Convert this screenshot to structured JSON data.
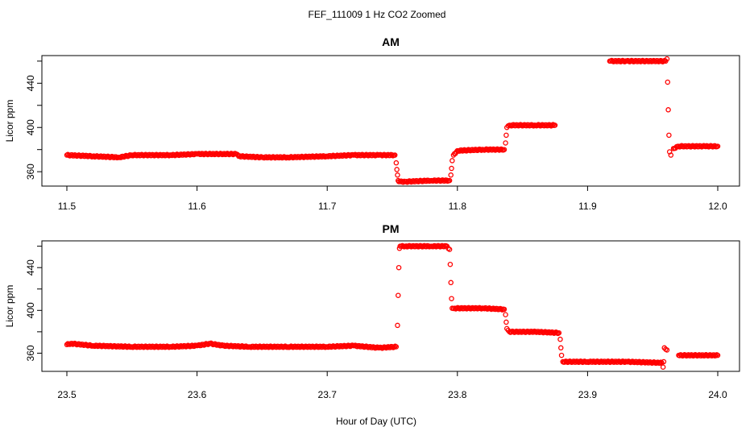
{
  "figure": {
    "title": "FEF_111009  1 Hz CO2 Zoomed",
    "xlabel": "Hour of Day (UTC)",
    "marker_color": "#ff0000"
  },
  "chart_data": [
    {
      "type": "scatter",
      "title": "AM",
      "xlabel": "Hour of Day (UTC)",
      "ylabel": "Licor ppm",
      "xlim": [
        11.5,
        12.0
      ],
      "ylim": [
        347,
        465
      ],
      "xticks": [
        "11.5",
        "11.6",
        "11.7",
        "11.8",
        "11.9",
        "12.0"
      ],
      "yticks": [
        "360",
        "400",
        "440"
      ],
      "grid": false,
      "series": [
        {
          "x": [
            11.5,
            11.52,
            11.54,
            11.55,
            11.58,
            11.6,
            11.63,
            11.632,
            11.65,
            11.67,
            11.7,
            11.72,
            11.74,
            11.752,
            11.753,
            11.7535,
            11.754,
            11.7545,
            11.755,
            11.756,
            11.76,
            11.78,
            11.794,
            11.795,
            11.7955,
            11.796,
            11.797,
            11.8,
            11.82,
            11.836,
            11.837,
            11.8375,
            11.838,
            11.84,
            11.86,
            11.875,
            11.917,
            11.93,
            11.95,
            11.96,
            11.961,
            11.9615,
            11.962,
            11.9625,
            11.963,
            11.964,
            11.966,
            11.97,
            11.99,
            12.0
          ],
          "y": [
            375,
            374,
            373,
            375,
            375,
            376,
            376,
            374,
            373,
            373,
            374,
            375,
            375,
            375,
            368,
            362,
            357,
            352,
            351,
            351,
            351,
            352,
            352,
            357,
            363,
            370,
            375,
            379,
            380,
            380,
            386,
            393,
            400,
            402,
            402,
            402,
            460,
            460,
            460,
            460,
            462,
            441,
            416,
            393,
            378,
            375,
            381,
            383,
            383,
            383
          ]
        }
      ]
    },
    {
      "type": "scatter",
      "title": "PM",
      "xlabel": "Hour of Day (UTC)",
      "ylabel": "Licor ppm",
      "xlim": [
        23.5,
        24.0
      ],
      "ylim": [
        343,
        465
      ],
      "xticks": [
        "23.5",
        "23.6",
        "23.7",
        "23.8",
        "23.9",
        "24.0"
      ],
      "yticks": [
        "360",
        "400",
        "440"
      ],
      "grid": false,
      "series": [
        {
          "x": [
            23.5,
            23.503,
            23.52,
            23.55,
            23.58,
            23.6,
            23.61,
            23.62,
            23.64,
            23.67,
            23.7,
            23.72,
            23.74,
            23.753,
            23.754,
            23.7545,
            23.755,
            23.7555,
            23.756,
            23.757,
            23.76,
            23.78,
            23.792,
            23.794,
            23.7945,
            23.795,
            23.7955,
            23.796,
            23.798,
            23.82,
            23.836,
            23.837,
            23.8375,
            23.838,
            23.84,
            23.86,
            23.878,
            23.879,
            23.8795,
            23.88,
            23.881,
            23.9,
            23.93,
            23.957,
            23.958,
            23.9585,
            23.959,
            23.961,
            23.97,
            24.0
          ],
          "y": [
            368,
            369,
            367,
            366,
            366,
            367,
            369,
            367,
            366,
            366,
            366,
            367,
            365,
            366,
            386,
            414,
            440,
            458,
            460,
            460,
            460,
            460,
            460,
            457,
            443,
            426,
            411,
            402,
            402,
            402,
            401,
            396,
            389,
            383,
            380,
            380,
            379,
            373,
            365,
            358,
            352,
            352,
            352,
            351,
            347,
            352,
            365,
            363,
            358,
            358
          ]
        }
      ]
    }
  ]
}
